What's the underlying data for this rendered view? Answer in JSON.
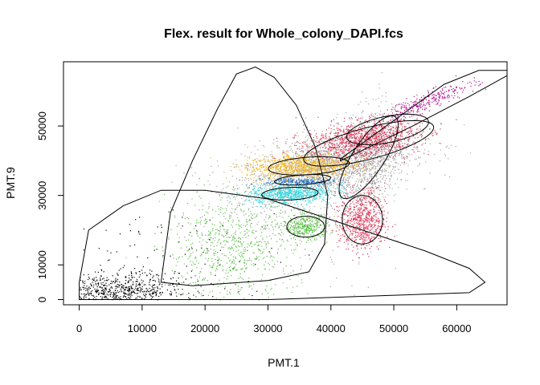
{
  "chart_data": {
    "type": "scatter",
    "title": "Flex. result for Whole_colony_DAPI.fcs",
    "xlabel": "PMT.1",
    "ylabel": "PMT.9",
    "xlim": [
      -2500,
      68000
    ],
    "ylim": [
      -1500,
      68500
    ],
    "x_ticks": [
      0,
      10000,
      20000,
      30000,
      40000,
      50000,
      60000
    ],
    "y_ticks": [
      0,
      10000,
      30000,
      50000
    ],
    "grid": false,
    "legend": "none",
    "colors": {
      "black": "#000000",
      "grey": "#a6a6a6",
      "green": "#55c040",
      "magenta": "#b0108f",
      "orange": "#f4b51b",
      "blue": "#1f6ec7",
      "cyan": "#2fd8e0",
      "red": "#dd3556"
    },
    "populations": [
      {
        "color": "grey",
        "cx": 39000,
        "cy": 38000,
        "sx": 7000,
        "sy": 5500,
        "rho": 0.5,
        "n": 2200
      },
      {
        "color": "grey",
        "cx": 46000,
        "cy": 40000,
        "sx": 2500,
        "sy": 9000,
        "rho": 0.3,
        "n": 600
      },
      {
        "color": "grey",
        "cx": 30000,
        "cy": 15000,
        "sx": 9000,
        "sy": 9000,
        "rho": 0.0,
        "n": 180
      },
      {
        "color": "black",
        "cx": 6000,
        "cy": 2500,
        "sx": 5000,
        "sy": 2500,
        "rho": 0.1,
        "n": 700
      },
      {
        "color": "black",
        "cx": 15000,
        "cy": 10000,
        "sx": 9000,
        "sy": 8000,
        "rho": 0.0,
        "n": 120
      },
      {
        "color": "green",
        "cx": 24000,
        "cy": 15000,
        "sx": 5000,
        "sy": 8000,
        "rho": 0.1,
        "n": 650
      },
      {
        "color": "green",
        "cx": 36000,
        "cy": 21000,
        "sx": 1800,
        "sy": 1800,
        "rho": 0.0,
        "n": 350
      },
      {
        "color": "magenta",
        "cx": 55000,
        "cy": 57000,
        "sx": 4000,
        "sy": 3000,
        "rho": 0.9,
        "n": 300
      },
      {
        "color": "red",
        "cx": 45000,
        "cy": 46000,
        "sx": 4500,
        "sy": 2800,
        "rho": 0.3,
        "n": 1100
      },
      {
        "color": "red",
        "cx": 45000,
        "cy": 23000,
        "sx": 1800,
        "sy": 4500,
        "rho": 0.0,
        "n": 700
      },
      {
        "color": "orange",
        "cx": 35000,
        "cy": 38500,
        "sx": 4200,
        "sy": 1800,
        "rho": 0.2,
        "n": 900
      },
      {
        "color": "cyan",
        "cx": 33500,
        "cy": 30500,
        "sx": 3500,
        "sy": 1400,
        "rho": 0.15,
        "n": 700
      },
      {
        "color": "blue",
        "cx": 35000,
        "cy": 34000,
        "sx": 2800,
        "sy": 600,
        "rho": 0.0,
        "n": 220
      }
    ],
    "gates": [
      {
        "type": "polygon",
        "points": [
          [
            0,
            0
          ],
          [
            0,
            5000
          ],
          [
            1500,
            20000
          ],
          [
            7000,
            27000
          ],
          [
            13000,
            31500
          ],
          [
            20000,
            31500
          ],
          [
            30000,
            29000
          ],
          [
            40000,
            23000
          ],
          [
            55000,
            14000
          ],
          [
            62000,
            9000
          ],
          [
            64500,
            5000
          ],
          [
            62000,
            2000
          ],
          [
            30000,
            0
          ]
        ]
      },
      {
        "type": "polygon",
        "points": [
          [
            13000,
            5000
          ],
          [
            14500,
            25000
          ],
          [
            18000,
            40000
          ],
          [
            22000,
            55000
          ],
          [
            25000,
            65000
          ],
          [
            28000,
            67000
          ],
          [
            31000,
            64000
          ],
          [
            34500,
            56000
          ],
          [
            37500,
            44000
          ],
          [
            39500,
            30000
          ],
          [
            39000,
            16000
          ],
          [
            36500,
            8000
          ],
          [
            30000,
            5500
          ],
          [
            18000,
            4000
          ]
        ]
      },
      {
        "type": "polygon",
        "points": [
          [
            41500,
            40500
          ],
          [
            58000,
            62000
          ],
          [
            63500,
            66000
          ],
          [
            68000,
            66000
          ],
          [
            68000,
            64500
          ],
          [
            62000,
            58500
          ],
          [
            53000,
            50000
          ],
          [
            45000,
            43000
          ],
          [
            41500,
            40000
          ]
        ]
      },
      {
        "type": "ellipse",
        "cx": 49000,
        "cy": 49000,
        "rx": 7000,
        "ry": 3600,
        "angle": 25
      },
      {
        "type": "ellipse",
        "cx": 46000,
        "cy": 45000,
        "rx": 11500,
        "ry": 4200,
        "angle": 28
      },
      {
        "type": "ellipse",
        "cx": 46000,
        "cy": 41000,
        "rx": 12500,
        "ry": 2800,
        "angle": 72
      },
      {
        "type": "ellipse",
        "cx": 45000,
        "cy": 23000,
        "rx": 3200,
        "ry": 7000,
        "angle": 0
      },
      {
        "type": "ellipse",
        "cx": 36000,
        "cy": 21000,
        "rx": 3000,
        "ry": 3000,
        "angle": 0
      },
      {
        "type": "ellipse",
        "cx": 36500,
        "cy": 38500,
        "rx": 6500,
        "ry": 2500,
        "angle": 8
      },
      {
        "type": "ellipse",
        "cx": 35500,
        "cy": 34500,
        "rx": 4500,
        "ry": 1400,
        "angle": 8
      },
      {
        "type": "ellipse",
        "cx": 33500,
        "cy": 30500,
        "rx": 4500,
        "ry": 1800,
        "angle": 5
      }
    ]
  }
}
